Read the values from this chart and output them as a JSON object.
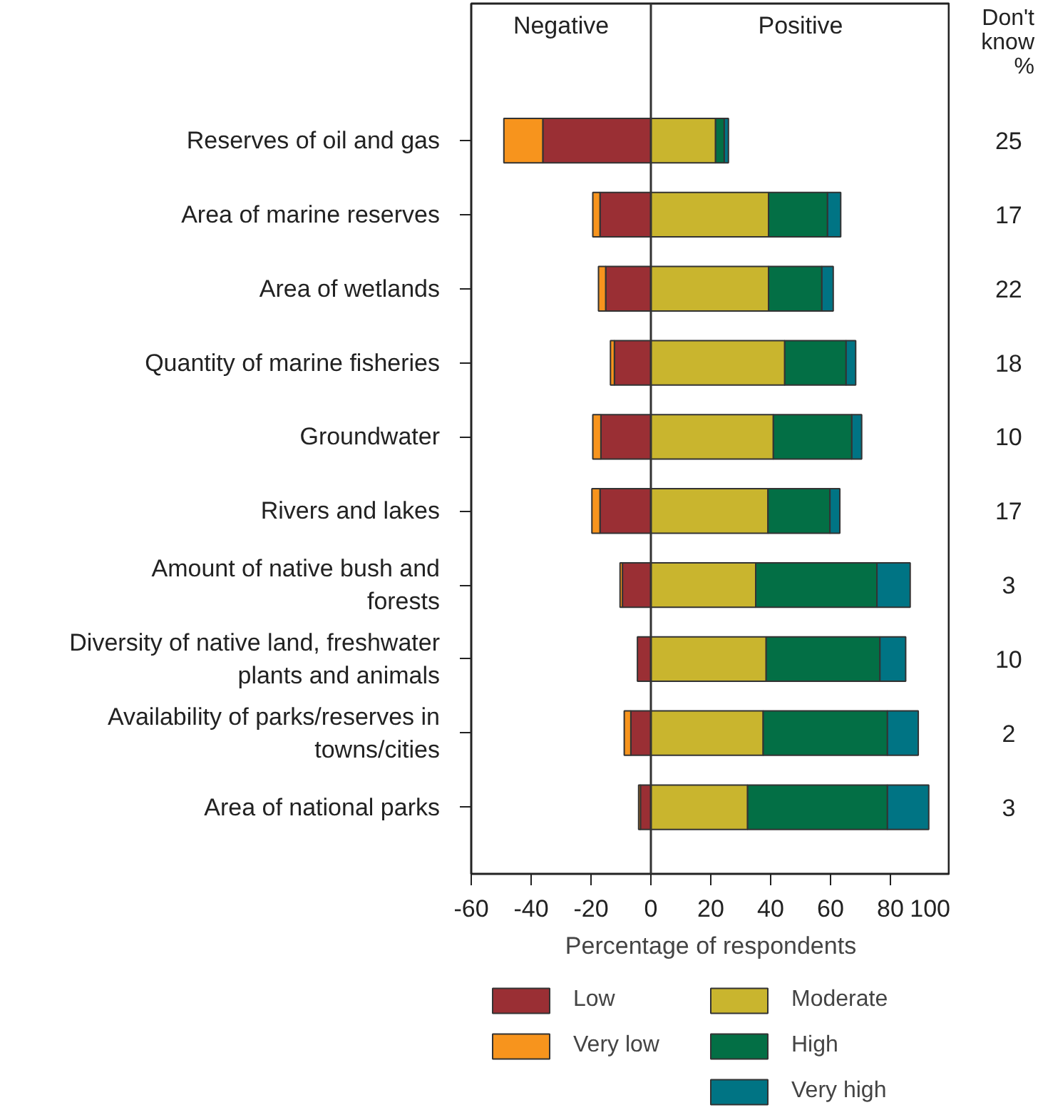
{
  "chart_data": {
    "type": "bar",
    "orientation": "horizontal",
    "stacked": true,
    "categories": [
      "Reserves of oil and gas",
      "Area of marine reserves",
      "Area of wetlands",
      "Quantity of marine fisheries",
      "Groundwater",
      "Rivers and lakes",
      "Amount of native bush and\nforests",
      "Diversity of native land, freshwater\nplants and animals",
      "Availability of parks/reserves in\ntowns/cities",
      "Area of national parks"
    ],
    "series": [
      {
        "name": "Low",
        "color": "#9a2f34",
        "values": [
          -36.1,
          -17.0,
          -15.1,
          -12.2,
          -16.7,
          -17.0,
          -9.5,
          -4.5,
          -6.7,
          -3.5
        ]
      },
      {
        "name": "Very low",
        "color": "#f7941d",
        "values": [
          -13.0,
          -2.4,
          -2.4,
          -1.3,
          -2.7,
          -2.7,
          -0.8,
          null,
          -2.2,
          -0.6
        ]
      },
      {
        "name": "Moderate",
        "color": "#c9b52e",
        "values": [
          21.6,
          39.3,
          39.3,
          44.7,
          40.9,
          39.1,
          35.0,
          38.5,
          37.5,
          32.3
        ]
      },
      {
        "name": "High",
        "color": "#036f45",
        "values": [
          2.9,
          19.7,
          17.8,
          20.5,
          26.2,
          20.7,
          40.5,
          38.0,
          41.5,
          46.7
        ]
      },
      {
        "name": "Very high",
        "color": "#007484",
        "values": [
          1.4,
          4.4,
          3.8,
          3.2,
          3.3,
          3.3,
          11.1,
          8.6,
          10.3,
          13.8
        ]
      }
    ],
    "xlim": [
      -60,
      100
    ],
    "xticks": [
      -60,
      -40,
      -20,
      0,
      20,
      40,
      60,
      80,
      100
    ],
    "xlabel": "Percentage of respondents",
    "ref_lines": [
      {
        "axis": "x",
        "value": 0,
        "color": "#333333"
      }
    ],
    "grid": false,
    "legend": "bottom",
    "annotations": [
      "Negative",
      "Positive",
      "Don't know %",
      "25",
      "17",
      "22",
      "18",
      "10",
      "17",
      "3",
      "10",
      "2",
      "3"
    ]
  }
}
